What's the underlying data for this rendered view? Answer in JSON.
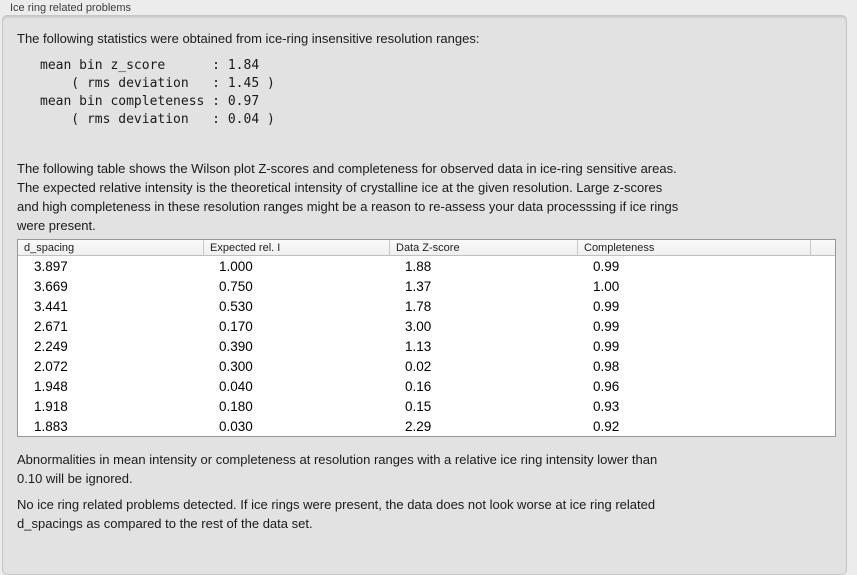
{
  "window": {
    "group_label": "Ice ring related problems"
  },
  "stats": {
    "intro": "The following statistics were obtained from ice-ring insensitive resolution ranges:",
    "block": "mean bin z_score      : 1.84\n    ( rms deviation   : 1.45 )\nmean bin completeness : 0.97\n    ( rms deviation   : 0.04 )",
    "mean_bin_z_score": "1.84",
    "z_score_rms_deviation": "1.45",
    "mean_bin_completeness": "0.97",
    "completeness_rms_deviation": "0.04"
  },
  "table_intro": "The following table shows the Wilson plot Z-scores and completeness for observed data in ice-ring sensitive areas.\nThe expected relative intensity is the theoretical intensity of crystalline ice at the given resolution. Large z-scores\nand high completeness in these resolution ranges might be a reason to re-assess your data processsing if ice rings\nwere present.",
  "table": {
    "headers": [
      "d_spacing",
      "Expected rel. I",
      "Data Z-score",
      "Completeness",
      ""
    ],
    "rows": [
      [
        "3.897",
        "1.000",
        "1.88",
        "0.99"
      ],
      [
        "3.669",
        "0.750",
        "1.37",
        "1.00"
      ],
      [
        "3.441",
        "0.530",
        "1.78",
        "0.99"
      ],
      [
        "2.671",
        "0.170",
        "3.00",
        "0.99"
      ],
      [
        "2.249",
        "0.390",
        "1.13",
        "0.99"
      ],
      [
        "2.072",
        "0.300",
        "0.02",
        "0.98"
      ],
      [
        "1.948",
        "0.040",
        "0.16",
        "0.96"
      ],
      [
        "1.918",
        "0.180",
        "0.15",
        "0.93"
      ],
      [
        "1.883",
        "0.030",
        "2.29",
        "0.92"
      ]
    ]
  },
  "notes": {
    "ignore_note": "Abnormalities in mean intensity or completeness at resolution ranges with a relative ice ring intensity lower than\n0.10 will be ignored.",
    "conclusion": "No ice ring related problems detected. If ice rings were present, the data does not look worse at ice ring related\nd_spacings as compared to the rest of the data set."
  },
  "colors": {
    "page_background": "#ececec",
    "panel_background": "#e2e2e2",
    "table_border": "#979797",
    "table_header_background": "#f4f4f4"
  }
}
